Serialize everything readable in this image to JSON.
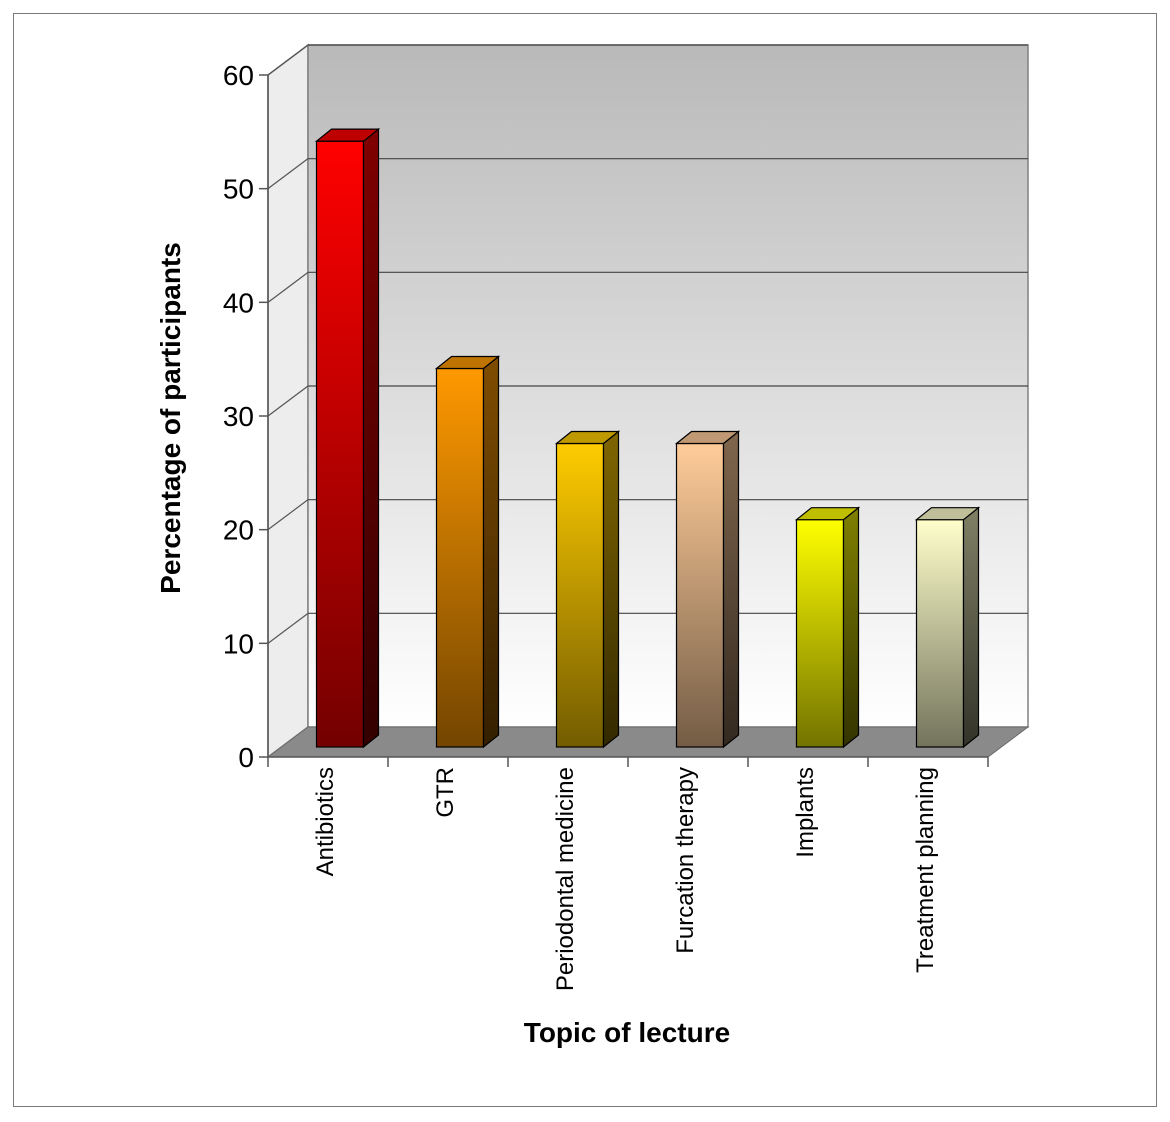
{
  "chart_data": {
    "type": "bar",
    "title": "",
    "xlabel": "Topic of lecture",
    "ylabel": "Percentage of participants",
    "ylim": [
      0,
      60
    ],
    "yticks": [
      0,
      10,
      20,
      30,
      40,
      50,
      60
    ],
    "grid": true,
    "categories": [
      "Antibiotics",
      "GTR",
      "Periodontal medicine",
      "Furcation therapy",
      "Implants",
      "Treatment planning"
    ],
    "values": [
      53.3,
      33.3,
      26.7,
      26.7,
      20,
      20
    ],
    "colors": [
      "#ff0000",
      "#ff9900",
      "#ffcc00",
      "#ffcc99",
      "#ffff00",
      "#ffffcc"
    ]
  }
}
